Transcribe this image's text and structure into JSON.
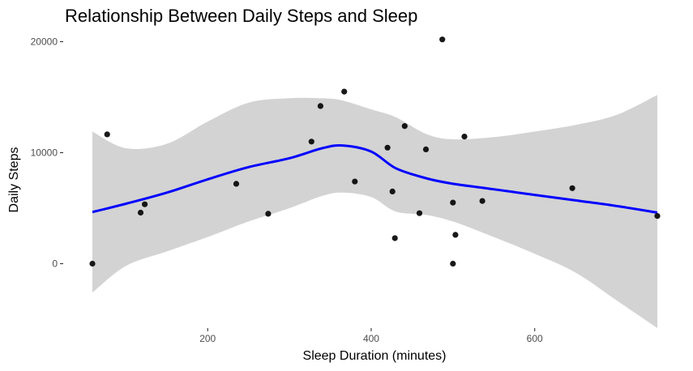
{
  "chart_data": {
    "type": "scatter",
    "title": "Relationship Between Daily Steps and Sleep",
    "xlabel": "Sleep Duration (minutes)",
    "ylabel": "Daily Steps",
    "xlim": [
      59,
      750
    ],
    "ylim": [
      -5800,
      21200
    ],
    "x_ticks": [
      200,
      400,
      600
    ],
    "y_ticks": [
      0,
      10000,
      20000
    ],
    "x_tick_labels": [
      "200",
      "400",
      "600"
    ],
    "y_tick_labels": [
      "0",
      "10000",
      "20000"
    ],
    "grid": false,
    "background": "#ffffff",
    "colors": {
      "points": "#000000",
      "trend": "#0000ff",
      "band": "#d3d3d3",
      "axis_text": "#4d4d4d"
    },
    "series": [
      {
        "type": "points",
        "x": [
          59,
          77,
          118,
          123,
          235,
          274,
          327,
          338,
          367,
          380,
          420,
          426,
          429,
          441,
          459,
          467,
          487,
          500,
          500,
          503,
          514,
          536,
          646,
          750
        ],
        "y": [
          0,
          11650,
          4600,
          5350,
          7200,
          4500,
          11000,
          14200,
          15500,
          7400,
          10450,
          6500,
          2300,
          12400,
          4550,
          10300,
          20200,
          0,
          5500,
          2600,
          11450,
          5650,
          6800,
          4300
        ]
      },
      {
        "type": "smooth",
        "method": "loess",
        "x": [
          59,
          100,
          150,
          200,
          250,
          300,
          340,
          365,
          400,
          430,
          467,
          500,
          550,
          600,
          650,
          700,
          750
        ],
        "y": [
          4650,
          5400,
          6400,
          7600,
          8700,
          9500,
          10400,
          10650,
          10100,
          8600,
          7700,
          7200,
          6700,
          6200,
          5700,
          5200,
          4600
        ],
        "lower": [
          -2600,
          -200,
          1100,
          2400,
          3800,
          5000,
          6100,
          6400,
          6000,
          4700,
          4400,
          3800,
          2400,
          900,
          -800,
          -3300,
          -5800
        ],
        "upper": [
          11900,
          10400,
          10800,
          12800,
          14500,
          14900,
          14900,
          14700,
          13900,
          13200,
          11700,
          11200,
          11400,
          11900,
          12500,
          13400,
          15200
        ]
      }
    ]
  }
}
